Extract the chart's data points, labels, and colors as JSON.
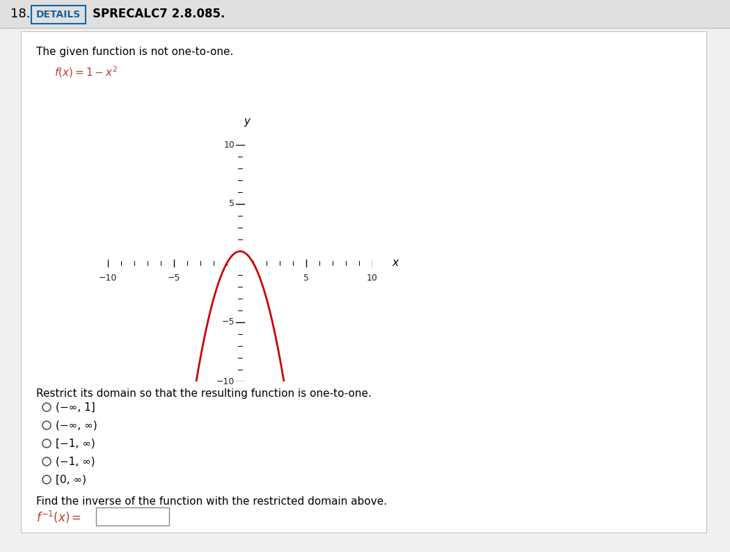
{
  "title_number": "18.",
  "details_label": "DETAILS",
  "subtitle": "SPRECALC7 2.8.085.",
  "description": "The given function is not one-to-one.",
  "plot_xlim": [
    -10,
    10
  ],
  "plot_ylim": [
    -10,
    10
  ],
  "curve_color": "#cc0000",
  "axis_color": "#000000",
  "xlabel": "x",
  "ylabel": "y",
  "restrict_text_plain": "Restrict its domain so that the resulting function is one-to-one.",
  "options": [
    "(−∞, 1]",
    "(−∞, ∞)",
    "[−1, ∞)",
    "(−1, ∞)",
    "[0, ∞)"
  ],
  "inverse_text": "Find the inverse of the function with the restricted domain above.",
  "background_color": "#f0f0f0",
  "panel_background": "#ffffff",
  "header_bg": "#e0e0e0",
  "details_border_color": "#1565a8",
  "details_text_color": "#1565a8",
  "text_color": "#000000",
  "red_color": "#c0392b",
  "tick_label_color": "#222222",
  "xtick_labels": [
    "−10",
    "−5",
    "5",
    "10"
  ],
  "xtick_vals": [
    -10,
    -5,
    5,
    10
  ],
  "ytick_labels": [
    "10",
    "5",
    "−5",
    "−10"
  ],
  "ytick_vals": [
    10,
    5,
    -5,
    -10
  ]
}
